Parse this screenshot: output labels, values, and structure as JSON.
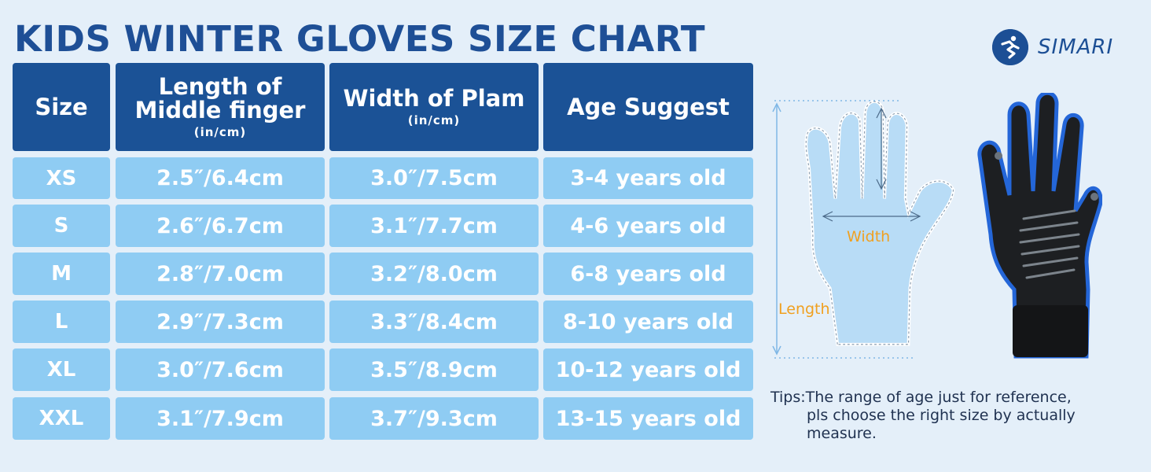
{
  "title": "KIDS WINTER GLOVES SIZE CHART",
  "brand": {
    "name": "SIMARI",
    "logo_icon": "simari-runner-logo-icon",
    "color": "#1c4f95"
  },
  "colors": {
    "header_bg": "#1b5296",
    "cell_bg": "#8fccf3",
    "page_bg": "#e4eff9",
    "accent": "#f0a020"
  },
  "table": {
    "headers": [
      {
        "main": "Size",
        "unit": ""
      },
      {
        "main": "Length of\nMiddle finger",
        "unit": "(in/cm)"
      },
      {
        "main": "Width of Plam",
        "unit": "(in/cm)"
      },
      {
        "main": "Age Suggest",
        "unit": ""
      }
    ],
    "rows": [
      [
        "XS",
        "2.5″/6.4cm",
        "3.0″/7.5cm",
        "3-4 years old"
      ],
      [
        "S",
        "2.6″/6.7cm",
        "3.1″/7.7cm",
        "4-6 years old"
      ],
      [
        "M",
        "2.8″/7.0cm",
        "3.2″/8.0cm",
        "6-8 years old"
      ],
      [
        "L",
        "2.9″/7.3cm",
        "3.3″/8.4cm",
        "8-10 years old"
      ],
      [
        "XL",
        "3.0″/7.6cm",
        "3.5″/8.9cm",
        "10-12 years old"
      ],
      [
        "XXL",
        "3.1″/7.9cm",
        "3.7″/9.3cm",
        "13-15 years old"
      ]
    ]
  },
  "diagram": {
    "width_label": "Width",
    "length_label": "Length"
  },
  "tips": {
    "lead": "Tips:",
    "lines": [
      "The range of age just for reference,",
      "pls choose the right size by actually",
      "measure."
    ]
  }
}
